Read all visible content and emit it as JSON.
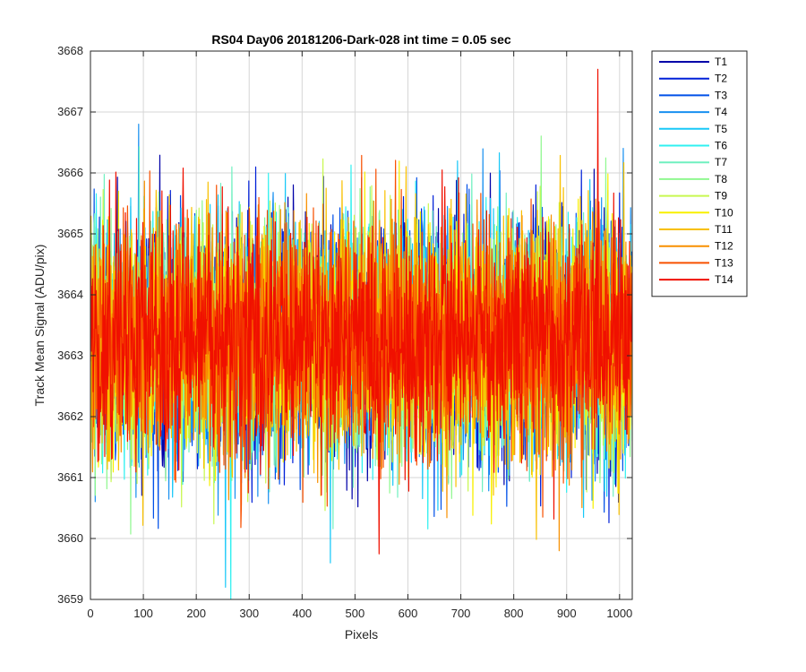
{
  "chart_data": {
    "type": "line",
    "title": "RS04 Day06 20181206-Dark-028 int time = 0.05 sec",
    "xlabel": "Pixels",
    "ylabel": "Track Mean Signal (ADU/pix)",
    "xlim": [
      0,
      1024
    ],
    "ylim": [
      3659,
      3668
    ],
    "xticks": [
      0,
      100,
      200,
      300,
      400,
      500,
      600,
      700,
      800,
      900,
      1000
    ],
    "yticks": [
      3659,
      3660,
      3661,
      3662,
      3663,
      3664,
      3665,
      3666,
      3667,
      3668
    ],
    "grid": true,
    "legend_position": "outside-top-right",
    "noise": {
      "mean": 3663.3,
      "std": 0.95,
      "num_points": 1024
    },
    "series": [
      {
        "name": "T1",
        "color": "#0000a8"
      },
      {
        "name": "T2",
        "color": "#0020d8"
      },
      {
        "name": "T3",
        "color": "#0050e8"
      },
      {
        "name": "T4",
        "color": "#1890f0"
      },
      {
        "name": "T5",
        "color": "#18c8f8"
      },
      {
        "name": "T6",
        "color": "#30f0f0"
      },
      {
        "name": "T7",
        "color": "#70f0c0"
      },
      {
        "name": "T8",
        "color": "#90f890"
      },
      {
        "name": "T9",
        "color": "#c8f850"
      },
      {
        "name": "T10",
        "color": "#f8f000"
      },
      {
        "name": "T11",
        "color": "#f8c000"
      },
      {
        "name": "T12",
        "color": "#f89000"
      },
      {
        "name": "T13",
        "color": "#f85000"
      },
      {
        "name": "T14",
        "color": "#f01000"
      }
    ],
    "extremes": [
      {
        "series": "T14",
        "x": 958,
        "y": 3667.7
      },
      {
        "series": "T4",
        "x": 91,
        "y": 3666.8
      },
      {
        "series": "T6",
        "x": 265,
        "y": 3659.0
      },
      {
        "series": "T5",
        "x": 255,
        "y": 3659.2
      },
      {
        "series": "T5",
        "x": 453,
        "y": 3659.6
      },
      {
        "series": "T12",
        "x": 885,
        "y": 3659.8
      }
    ]
  }
}
